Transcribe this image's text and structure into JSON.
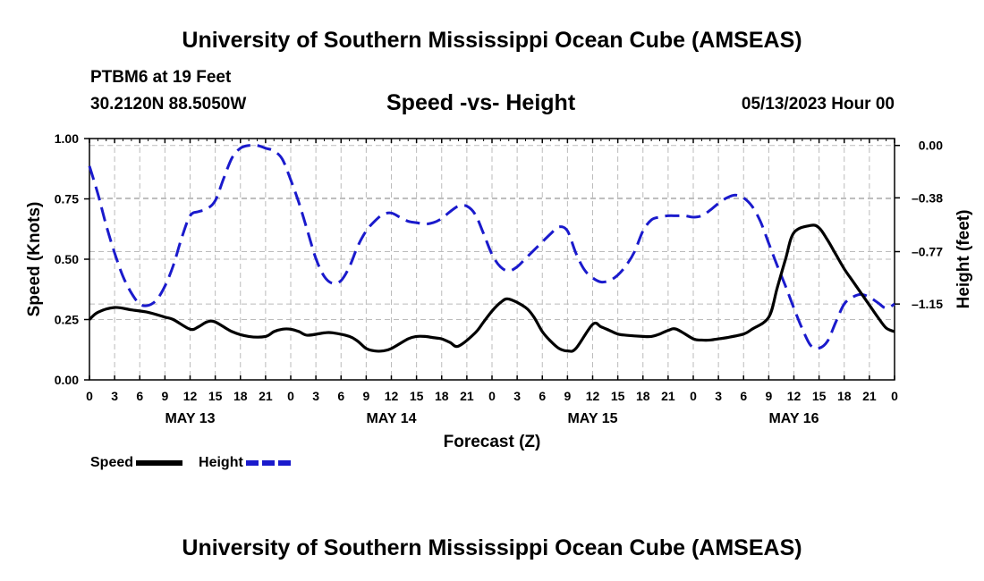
{
  "header": {
    "title": "University of Southern Mississippi Ocean Cube (AMSEAS)",
    "station": "PTBM6 at 19 Feet",
    "coords": "30.2120N  88.5050W",
    "subtitle": "Speed -vs- Height",
    "datetime": "05/13/2023 Hour 00"
  },
  "footer": {
    "title": "University of Southern Mississippi Ocean Cube (AMSEAS)"
  },
  "colors": {
    "speed": "#000000",
    "height": "#1a1acc",
    "grid": "#bbbbbb"
  },
  "chart_data": {
    "type": "line",
    "title": "Speed -vs- Height",
    "xlabel": "Forecast (Z)",
    "ylabel": "Speed (Knots)",
    "y2label": "Height (feet)",
    "xlim": [
      0,
      96
    ],
    "ylim": [
      0,
      1
    ],
    "y2lim": [
      -1.7,
      0.05
    ],
    "x_tick_labels": [
      "0",
      "3",
      "6",
      "9",
      "12",
      "15",
      "18",
      "21",
      "0",
      "3",
      "6",
      "9",
      "12",
      "15",
      "18",
      "21",
      "0",
      "3",
      "6",
      "9",
      "12",
      "15",
      "18",
      "21",
      "0",
      "3",
      "6",
      "9",
      "12",
      "15",
      "18",
      "21",
      "0"
    ],
    "day_labels": [
      {
        "label": "MAY 13",
        "x": 12
      },
      {
        "label": "MAY 14",
        "x": 36
      },
      {
        "label": "MAY 15",
        "x": 60
      },
      {
        "label": "MAY 16",
        "x": 84
      }
    ],
    "y_ticks": [
      0.0,
      0.25,
      0.5,
      0.75,
      1.0
    ],
    "y_tick_labels": [
      "0.00",
      "0.25",
      "0.50",
      "0.75",
      "1.00"
    ],
    "y2_ticks": [
      0.0,
      -0.38,
      -0.77,
      -1.15
    ],
    "y2_tick_labels": [
      "0.00",
      "–0.38",
      "–0.77",
      "–1.15"
    ],
    "legend": [
      {
        "name": "Speed",
        "style": "solid"
      },
      {
        "name": "Height",
        "style": "dashed"
      }
    ],
    "series": [
      {
        "name": "Speed",
        "axis": "left",
        "x": [
          0,
          1,
          3,
          5,
          7,
          9,
          10,
          12,
          13,
          14,
          15,
          17,
          19,
          21,
          22,
          23,
          24,
          25,
          26,
          28,
          29,
          31,
          32,
          33,
          34,
          35,
          36,
          38,
          39,
          40,
          41,
          42,
          43,
          44,
          46,
          47,
          48,
          49,
          50,
          52,
          53,
          54,
          55,
          56,
          57,
          58,
          60,
          61,
          62,
          63,
          64,
          66,
          67,
          68,
          69,
          70,
          72,
          73,
          74,
          75,
          76,
          78,
          79,
          81,
          82,
          83,
          84,
          86,
          87,
          88,
          89,
          90,
          91,
          92,
          93,
          94,
          95,
          96
        ],
        "values": [
          0.25,
          0.28,
          0.3,
          0.29,
          0.28,
          0.26,
          0.25,
          0.21,
          0.22,
          0.24,
          0.24,
          0.2,
          0.18,
          0.18,
          0.2,
          0.21,
          0.21,
          0.2,
          0.185,
          0.195,
          0.195,
          0.18,
          0.16,
          0.13,
          0.12,
          0.12,
          0.13,
          0.17,
          0.18,
          0.18,
          0.175,
          0.17,
          0.155,
          0.14,
          0.195,
          0.24,
          0.285,
          0.32,
          0.335,
          0.3,
          0.26,
          0.2,
          0.16,
          0.13,
          0.12,
          0.13,
          0.23,
          0.22,
          0.205,
          0.19,
          0.185,
          0.18,
          0.18,
          0.19,
          0.205,
          0.21,
          0.17,
          0.165,
          0.165,
          0.17,
          0.175,
          0.19,
          0.21,
          0.26,
          0.38,
          0.5,
          0.61,
          0.64,
          0.63,
          0.58,
          0.52,
          0.46,
          0.41,
          0.36,
          0.31,
          0.26,
          0.215,
          0.2
        ]
      },
      {
        "name": "Height",
        "axis": "right",
        "x": [
          0,
          1,
          2,
          3,
          4,
          5,
          6,
          7,
          8,
          9,
          10,
          11,
          12,
          13,
          14,
          15,
          16,
          17,
          18,
          19,
          20,
          21,
          22,
          23,
          24,
          25,
          26,
          27,
          28,
          29,
          30,
          31,
          32,
          33,
          34,
          35,
          36,
          37,
          38,
          39,
          40,
          41,
          42,
          43,
          44,
          45,
          46,
          47,
          48,
          49,
          50,
          51,
          52,
          53,
          54,
          55,
          56,
          57,
          58,
          59,
          60,
          61,
          62,
          63,
          64,
          65,
          66,
          67,
          68,
          69,
          70,
          71,
          72,
          73,
          74,
          75,
          76,
          77,
          78,
          79,
          80,
          81,
          82,
          83,
          84,
          85,
          86,
          87,
          88,
          89,
          90,
          91,
          92,
          93,
          94,
          95,
          96
        ],
        "values": [
          -0.15,
          -0.35,
          -0.58,
          -0.78,
          -0.95,
          -1.07,
          -1.15,
          -1.16,
          -1.12,
          -1.02,
          -0.87,
          -0.67,
          -0.51,
          -0.48,
          -0.46,
          -0.4,
          -0.24,
          -0.09,
          -0.02,
          0.0,
          0.0,
          -0.02,
          -0.04,
          -0.1,
          -0.25,
          -0.42,
          -0.62,
          -0.82,
          -0.95,
          -1.0,
          -0.98,
          -0.88,
          -0.73,
          -0.62,
          -0.55,
          -0.5,
          -0.49,
          -0.52,
          -0.55,
          -0.56,
          -0.57,
          -0.56,
          -0.53,
          -0.48,
          -0.44,
          -0.44,
          -0.5,
          -0.64,
          -0.79,
          -0.88,
          -0.91,
          -0.88,
          -0.82,
          -0.76,
          -0.7,
          -0.64,
          -0.59,
          -0.62,
          -0.78,
          -0.9,
          -0.96,
          -0.99,
          -0.98,
          -0.94,
          -0.87,
          -0.77,
          -0.62,
          -0.54,
          -0.52,
          -0.51,
          -0.51,
          -0.51,
          -0.52,
          -0.51,
          -0.47,
          -0.42,
          -0.38,
          -0.36,
          -0.38,
          -0.44,
          -0.55,
          -0.71,
          -0.87,
          -1.02,
          -1.18,
          -1.33,
          -1.45,
          -1.47,
          -1.42,
          -1.28,
          -1.15,
          -1.1,
          -1.08,
          -1.1,
          -1.14,
          -1.18,
          -1.15
        ]
      }
    ]
  }
}
